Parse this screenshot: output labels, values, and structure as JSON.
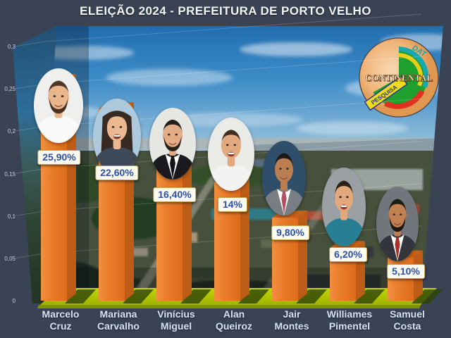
{
  "title": "ELEIÇÃO 2024 - PREFEITURA DE PORTO VELHO",
  "logo": {
    "name": "CONTINENTAL",
    "banner": "PESQUISA",
    "corner_text": "DAT"
  },
  "colors": {
    "background": "#3A4354",
    "bar_front": "#E8782A",
    "bar_side": "#BC5C16",
    "floor": "#AEC40A",
    "floor_shadow": "#2E4408",
    "value_text": "#2B50A8",
    "value_box_bg": "#FDFBF0",
    "value_box_border": "#C8A24A",
    "name_text": "#D4E4F4",
    "title_text": "#F4F7FA"
  },
  "chart_data": {
    "type": "bar",
    "title": "ELEIÇÃO 2024 - PREFEITURA DE PORTO VELHO",
    "categories": [
      "Marcelo Cruz",
      "Mariana Carvalho",
      "Vinícius Miguel",
      "Alan Queiroz",
      "Jair Montes",
      "Williames Pimentel",
      "Samuel Costa"
    ],
    "values": [
      25.9,
      22.6,
      16.4,
      14,
      9.8,
      6.2,
      5.1
    ],
    "value_labels": [
      "25,90%",
      "22,60%",
      "16,40%",
      "14%",
      "9,80%",
      "6,20%",
      "5,10%"
    ],
    "xlabel": "",
    "ylabel": "",
    "ylim": [
      0,
      0.3
    ],
    "grid": true,
    "legend": "none",
    "y_ticks": [
      {
        "label": "0,3",
        "value": 0.3
      },
      {
        "label": "0,25",
        "value": 0.25
      },
      {
        "label": "0,2",
        "value": 0.2
      },
      {
        "label": "0,15",
        "value": 0.15
      },
      {
        "label": "0,1",
        "value": 0.1
      },
      {
        "label": "0,05",
        "value": 0.05
      },
      {
        "label": "0",
        "value": 0
      }
    ],
    "candidates": [
      {
        "name_line1": "Marcelo",
        "name_line2": "Cruz",
        "label": "25,90%",
        "value": 25.9,
        "avatar": {
          "bg": "#EFEFED",
          "skin": "#E9B68C",
          "hair": "#53382A",
          "style": "short",
          "beard": "#4C3222",
          "shirt": "#FAFAFA",
          "suit": null,
          "tie": null,
          "mouth": "smile"
        }
      },
      {
        "name_line1": "Mariana",
        "name_line2": "Carvalho",
        "label": "22,60%",
        "value": 22.6,
        "avatar": {
          "bg": "#AFC9DC",
          "skin": "#EBB892",
          "hair": "#382A22",
          "style": "long",
          "beard": null,
          "shirt": "#3E4A58",
          "suit": null,
          "tie": null,
          "mouth": "laugh"
        }
      },
      {
        "name_line1": "Vinícius",
        "name_line2": "Miguel",
        "label": "16,40%",
        "value": 16.4,
        "avatar": {
          "bg": "#E6E6E2",
          "skin": "#E2AC84",
          "hair": "#241D18",
          "style": "short",
          "beard": "#2A211A",
          "shirt": "#FFFFFF",
          "suit": "#1A1A1E",
          "tie": "#111418",
          "mouth": "smile"
        }
      },
      {
        "name_line1": "Alan",
        "name_line2": "Queiroz",
        "label": "14%",
        "value": 14,
        "avatar": {
          "bg": "#EAEAE6",
          "skin": "#E2A87E",
          "hair": "#3E2E24",
          "style": "short",
          "beard": null,
          "shirt": "#F2F2F0",
          "suit": null,
          "tie": null,
          "mouth": "laugh"
        }
      },
      {
        "name_line1": "Jair",
        "name_line2": "Montes",
        "label": "9,80%",
        "value": 9.8,
        "avatar": {
          "bg": "#2E4E6A",
          "skin": "#B97E52",
          "hair": "#1E1814",
          "style": "short",
          "beard": null,
          "shirt": "#FFFFFF",
          "suit": "#787E84",
          "tie": "#B05060",
          "mouth": "smile"
        }
      },
      {
        "name_line1": "Williames",
        "name_line2": "Pimentel",
        "label": "6,20%",
        "value": 6.2,
        "avatar": {
          "bg": "#9AA0A4",
          "skin": "#E2A87C",
          "hair": "#2A2018",
          "style": "short",
          "beard": null,
          "shirt": "#287E92",
          "suit": null,
          "tie": null,
          "mouth": "laugh"
        }
      },
      {
        "name_line1": "Samuel",
        "name_line2": "Costa",
        "label": "5,10%",
        "value": 5.1,
        "avatar": {
          "bg": "#70767C",
          "skin": "#C08050",
          "hair": "#221C16",
          "style": "short",
          "beard": "#1E1812",
          "shirt": "#FFFFFF",
          "suit": "#34343C",
          "tie": "#A83028",
          "mouth": "smile"
        }
      }
    ]
  }
}
